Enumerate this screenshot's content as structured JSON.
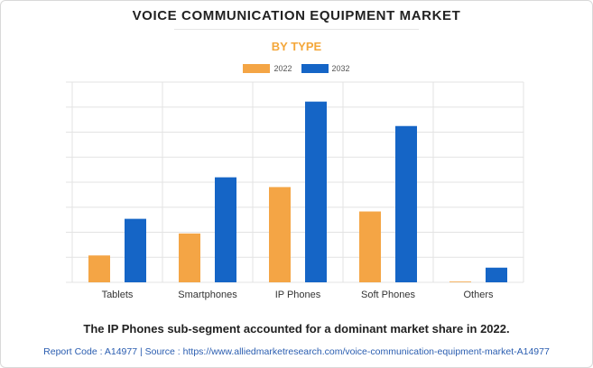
{
  "title": "VOICE COMMUNICATION EQUIPMENT MARKET",
  "subtitle": "BY TYPE",
  "caption": "The IP Phones sub-segment accounted for a dominant market share in 2022.",
  "footer": "Report Code : A14977  |  Source : https://www.alliedmarketresearch.com/voice-communication-equipment-market-A14977",
  "colors": {
    "accent_title": "#f4a73a",
    "series_2022": "#f4a545",
    "series_2032": "#1565c6",
    "grid": "#e3e3e3"
  },
  "chart_data": {
    "type": "bar",
    "categories": [
      "Tablets",
      "Smartphones",
      "IP Phones",
      "Soft Phones",
      "Others"
    ],
    "series": [
      {
        "name": "2022",
        "values": [
          1.1,
          2.0,
          3.9,
          2.9,
          0.03
        ]
      },
      {
        "name": "2032",
        "values": [
          2.6,
          4.3,
          7.4,
          6.4,
          0.6
        ]
      }
    ],
    "ylim": [
      0,
      8.2
    ],
    "grid": true,
    "legend_position": "top-center",
    "xlabel": "",
    "ylabel": ""
  }
}
